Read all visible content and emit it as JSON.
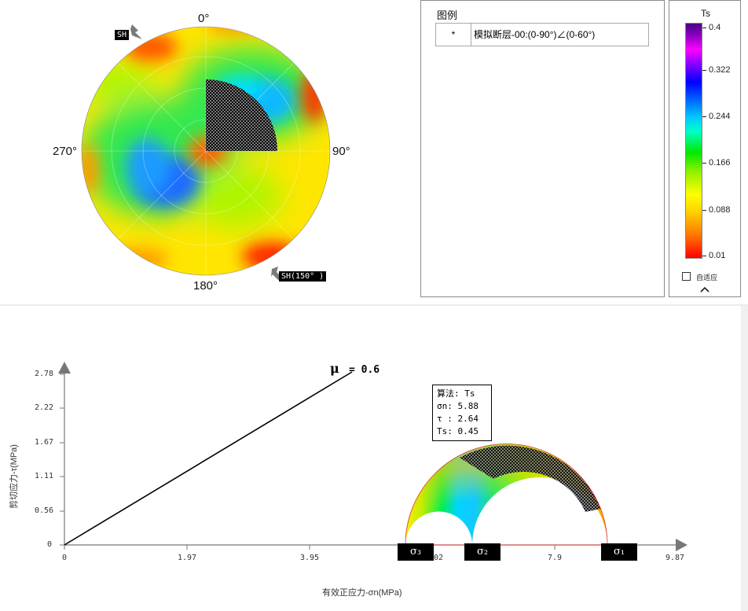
{
  "stereonet": {
    "label_top": "0°",
    "label_right": "90°",
    "label_bottom": "180°",
    "label_left": "270°",
    "sh_tag_top": "SH",
    "sh_tag_bottom": "SH(150° )"
  },
  "legend": {
    "title": "图例",
    "rows": [
      {
        "symbol": "*",
        "text": "模拟断层-00:(0-90°)∠(0-60°)"
      }
    ]
  },
  "colorbar": {
    "title": "Ts",
    "ticks": [
      "0.4",
      "0.322",
      "0.244",
      "0.166",
      "0.088",
      "0.01"
    ],
    "adaptive_label": "自适应",
    "adaptive_checked": false,
    "collapse_icon": "chevron-up-icon",
    "colors": [
      "#ff0000",
      "#ffa500",
      "#ffff00",
      "#00ff00",
      "#00ffff",
      "#0000ff",
      "#ff00ff",
      "#4b0082"
    ]
  },
  "mohr": {
    "y_axis_label": "剪切应力-τ(MPa)",
    "x_axis_label": "有效正应力-σn(MPa)",
    "y_ticks": [
      "2.78",
      "2.22",
      "1.67",
      "1.11",
      "0.56",
      "0"
    ],
    "x_ticks": [
      "0",
      "1.97",
      "3.95",
      "02",
      "7.9",
      "9.87"
    ],
    "mu_label": "μ",
    "mu_value": "= 0.6",
    "sigma3": "σ₃",
    "sigma2": "σ₂",
    "sigma1": "σ₁",
    "info": {
      "algorithm": "算法: Ts",
      "sigma_n": "σn: 5.88",
      "tau": "τ : 2.64",
      "ts": "Ts: 0.45"
    }
  }
}
